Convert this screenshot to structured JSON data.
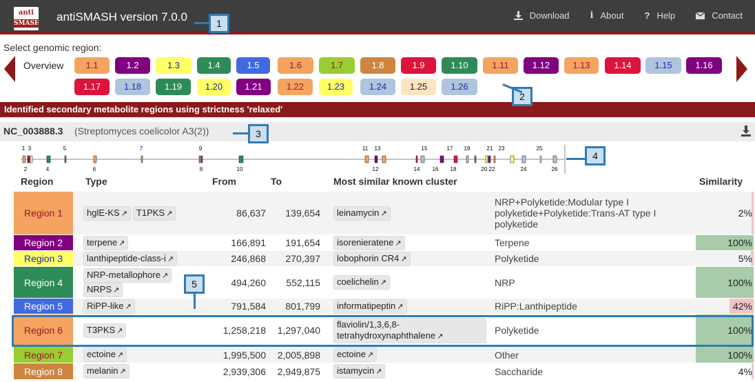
{
  "header": {
    "logo_top": "anti",
    "logo_bottom": "SMASH",
    "title": "antiSMASH version 7.0.0",
    "nav": [
      {
        "label": "Download",
        "icon": "download-icon"
      },
      {
        "label": "About",
        "icon": "info-icon"
      },
      {
        "label": "Help",
        "icon": "help-icon"
      },
      {
        "label": "Contact",
        "icon": "mail-icon"
      }
    ]
  },
  "selector": {
    "label": "Select genomic region:",
    "overview": "Overview",
    "buttons": [
      {
        "label": "1.1",
        "bg": "#f4a460",
        "fg": "#a0122d"
      },
      {
        "label": "1.2",
        "bg": "#800080",
        "fg": "#fff"
      },
      {
        "label": "1.3",
        "bg": "#ffff66",
        "fg": "#1d2bab"
      },
      {
        "label": "1.4",
        "bg": "#2e8b57",
        "fg": "#fff"
      },
      {
        "label": "1.5",
        "bg": "#4169e1",
        "fg": "#fff"
      },
      {
        "label": "1.6",
        "bg": "#f4a460",
        "fg": "#a0122d"
      },
      {
        "label": "1.7",
        "bg": "#9acd32",
        "fg": "#a0122d"
      },
      {
        "label": "1.8",
        "bg": "#cd853f",
        "fg": "#fff"
      },
      {
        "label": "1.9",
        "bg": "#dc143c",
        "fg": "#fff"
      },
      {
        "label": "1.10",
        "bg": "#2e8b57",
        "fg": "#fff"
      },
      {
        "label": "1.11",
        "bg": "#f4a460",
        "fg": "#a0122d"
      },
      {
        "label": "1.12",
        "bg": "#800080",
        "fg": "#fff"
      },
      {
        "label": "1.13",
        "bg": "#f4a460",
        "fg": "#a0122d"
      },
      {
        "label": "1.14",
        "bg": "#dc143c",
        "fg": "#fff"
      },
      {
        "label": "1.15",
        "bg": "#b0c4de",
        "fg": "#1d2bab"
      },
      {
        "label": "1.16",
        "bg": "#800080",
        "fg": "#fff"
      },
      {
        "label": "1.17",
        "bg": "#dc143c",
        "fg": "#fff"
      },
      {
        "label": "1.18",
        "bg": "#b0c4de",
        "fg": "#1d2bab"
      },
      {
        "label": "1.19",
        "bg": "#2e8b57",
        "fg": "#fff"
      },
      {
        "label": "1.20",
        "bg": "#ffff66",
        "fg": "#1d2bab"
      },
      {
        "label": "1.21",
        "bg": "#800080",
        "fg": "#fff"
      },
      {
        "label": "1.22",
        "bg": "#f4a460",
        "fg": "#a0122d"
      },
      {
        "label": "1.23",
        "bg": "#ffff66",
        "fg": "#1d2bab"
      },
      {
        "label": "1.24",
        "bg": "#b0c4de",
        "fg": "#1d2bab"
      },
      {
        "label": "1.25",
        "bg": "#ffe4c4",
        "fg": "#222"
      },
      {
        "label": "1.26",
        "bg": "#b0c4de",
        "fg": "#1d2bab"
      }
    ]
  },
  "strictness_banner": "Identified secondary metabolite regions using strictness 'relaxed'",
  "record": {
    "id": "NC_003888.3",
    "description": "(Streptomyces coelicolor A3(2))"
  },
  "overview_labels": {
    "top": [
      "1",
      "3",
      "5",
      "7",
      "9",
      "11",
      "13",
      "15",
      "17",
      "19",
      "21",
      "23",
      "25"
    ],
    "bottom": [
      "2",
      "4",
      "6",
      "8",
      "10",
      "12",
      "14",
      "16",
      "18",
      "20",
      "22",
      "24",
      "26"
    ]
  },
  "table": {
    "headers": {
      "region": "Region",
      "type": "Type",
      "from": "From",
      "to": "To",
      "cluster": "Most similar known cluster",
      "similarity": "Similarity"
    },
    "rows": [
      {
        "region": "Region 1",
        "bg": "#f4a460",
        "fg": "#a0122d",
        "types": [
          "hglE-KS",
          "T1PKS"
        ],
        "from": "86,637",
        "to": "139,654",
        "cluster": "leinamycin",
        "cluster_type": "NRP+Polyketide:Modular type I polyketide+Polyketide:Trans-AT type I polyketide",
        "similarity": "2%",
        "sim_value": 2,
        "sim_color": "#f2c4c4"
      },
      {
        "region": "Region 2",
        "bg": "#800080",
        "fg": "#fff",
        "types": [
          "terpene"
        ],
        "from": "166,891",
        "to": "191,654",
        "cluster": "isorenieratene",
        "cluster_type": "Terpene",
        "similarity": "100%",
        "sim_value": 100,
        "sim_color": "#a8ccaa"
      },
      {
        "region": "Region 3",
        "bg": "#ffff66",
        "fg": "#1d2bab",
        "types": [
          "lanthipeptide-class-i"
        ],
        "from": "246,868",
        "to": "270,397",
        "cluster": "lobophorin CR4",
        "cluster_type": "Polyketide",
        "similarity": "5%",
        "sim_value": 5,
        "sim_color": "#f2c4c4"
      },
      {
        "region": "Region 4",
        "bg": "#2e8b57",
        "fg": "#fff",
        "types": [
          "NRP-metallophore",
          "NRPS"
        ],
        "from": "494,260",
        "to": "552,115",
        "cluster": "coelichelin",
        "cluster_type": "NRP",
        "similarity": "100%",
        "sim_value": 100,
        "sim_color": "#a8ccaa"
      },
      {
        "region": "Region 5",
        "bg": "#4169e1",
        "fg": "#fff",
        "types": [
          "RiPP-like"
        ],
        "from": "791,584",
        "to": "801,799",
        "cluster": "informatipeptin",
        "cluster_type": "RiPP:Lanthipeptide",
        "similarity": "42%",
        "sim_value": 42,
        "sim_color": "#f2c4c4"
      },
      {
        "region": "Region 6",
        "bg": "#f4a460",
        "fg": "#a0122d",
        "types": [
          "T3PKS"
        ],
        "from": "1,258,218",
        "to": "1,297,040",
        "cluster": "flaviolin/1,3,6,8-tetrahydroxynaphthalene",
        "cluster_type": "Polyketide",
        "similarity": "100%",
        "sim_value": 100,
        "sim_color": "#a8ccaa"
      },
      {
        "region": "Region 7",
        "bg": "#9acd32",
        "fg": "#a0122d",
        "types": [
          "ectoine"
        ],
        "from": "1,995,500",
        "to": "2,005,898",
        "cluster": "ectoine",
        "cluster_type": "Other",
        "similarity": "100%",
        "sim_value": 100,
        "sim_color": "#a8ccaa"
      },
      {
        "region": "Region 8",
        "bg": "#cd853f",
        "fg": "#fff",
        "types": [
          "melanin"
        ],
        "from": "2,939,306",
        "to": "2,949,875",
        "cluster": "istamycin",
        "cluster_type": "Saccharide",
        "similarity": "4%",
        "sim_value": 4,
        "sim_color": "#f2c4c4"
      }
    ]
  },
  "callouts": [
    "1",
    "2",
    "3",
    "4",
    "5"
  ],
  "colors": {
    "header_bg": "#3e3e3e",
    "accent": "#8b1a1a",
    "callout_border": "#2e7bb5",
    "callout_fill": "#c9dff0"
  }
}
